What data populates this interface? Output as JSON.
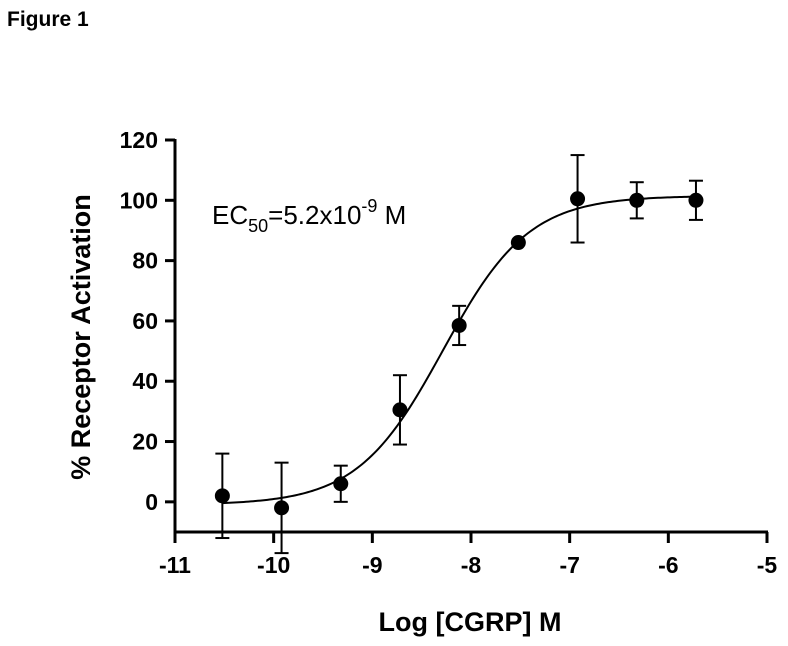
{
  "figure_label": "Figure 1",
  "chart_data": {
    "type": "scatter",
    "xlabel": "Log [CGRP] M",
    "ylabel": "% Receptor Activation",
    "xlim": [
      -11,
      -5
    ],
    "ylim": [
      -10,
      120
    ],
    "x_ticks": [
      -11,
      -10,
      -9,
      -8,
      -7,
      -6,
      -5
    ],
    "y_ticks": [
      0,
      20,
      40,
      60,
      80,
      100,
      120
    ],
    "x_tick_labels": [
      "-11",
      "-10",
      "-9",
      "-8",
      "-7",
      "-6",
      "-5"
    ],
    "y_tick_labels": [
      "0",
      "20",
      "40",
      "60",
      "80",
      "100",
      "120"
    ],
    "grid": false,
    "annotation": {
      "prefix": "EC",
      "subscript": "50",
      "mid": "=5.2x10",
      "superscript": "-9",
      "suffix": " M"
    },
    "series": [
      {
        "x": [
          -10.52,
          -9.92,
          -9.32,
          -8.72,
          -8.12,
          -7.52,
          -6.92,
          -6.32,
          -5.72
        ],
        "y": [
          2,
          -2,
          6,
          30.5,
          58.5,
          86,
          100.5,
          100,
          100
        ],
        "error": [
          14,
          15,
          6,
          11.5,
          6.5,
          0,
          14.5,
          6,
          6.5
        ],
        "color": "#000000"
      }
    ],
    "fit": {
      "type": "sigmoidal",
      "bottom": -1,
      "top": 101.5,
      "log_ec50": -8.284,
      "hill_slope": 1
    }
  }
}
